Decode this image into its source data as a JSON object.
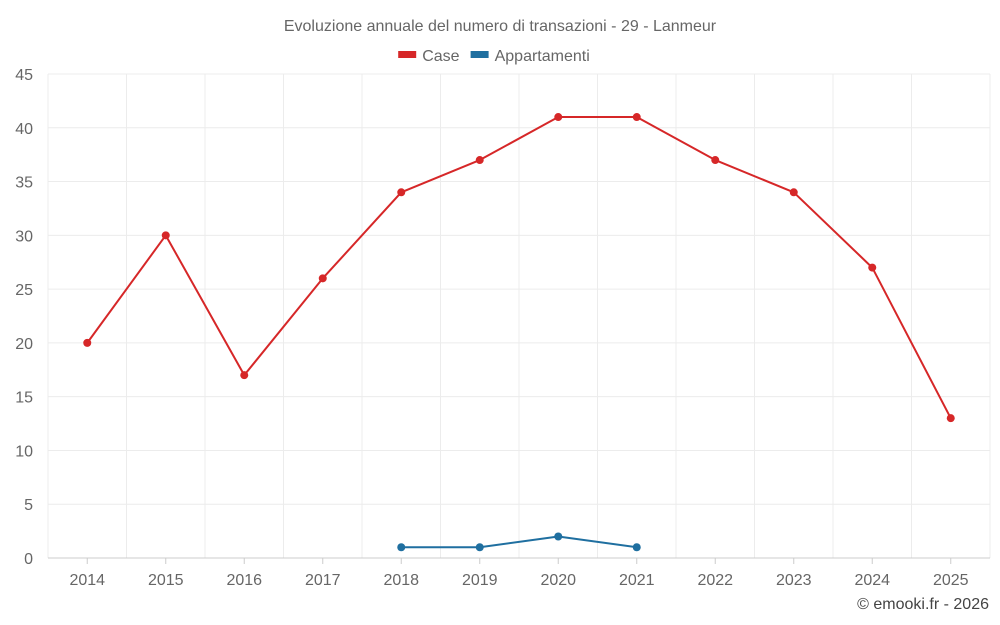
{
  "chart_data": {
    "type": "line",
    "title": "Evoluzione annuale del numero di transazioni - 29 - Lanmeur",
    "categories": [
      "2014",
      "2015",
      "2016",
      "2017",
      "2018",
      "2019",
      "2020",
      "2021",
      "2022",
      "2023",
      "2024",
      "2025"
    ],
    "series": [
      {
        "name": "Case",
        "color": "#d62728",
        "values": [
          20,
          30,
          17,
          26,
          34,
          37,
          41,
          41,
          37,
          34,
          27,
          13
        ]
      },
      {
        "name": "Appartamenti",
        "color": "#1f6fa0",
        "values": [
          null,
          null,
          null,
          null,
          1,
          1,
          2,
          1,
          null,
          null,
          null,
          null
        ]
      }
    ],
    "ylim": [
      0,
      45
    ],
    "yticks": [
      0,
      5,
      10,
      15,
      20,
      25,
      30,
      35,
      40,
      45
    ],
    "grid": true,
    "legend_position": "top-center",
    "xlabel": "",
    "ylabel": ""
  },
  "credit": "© emooki.fr - 2026"
}
